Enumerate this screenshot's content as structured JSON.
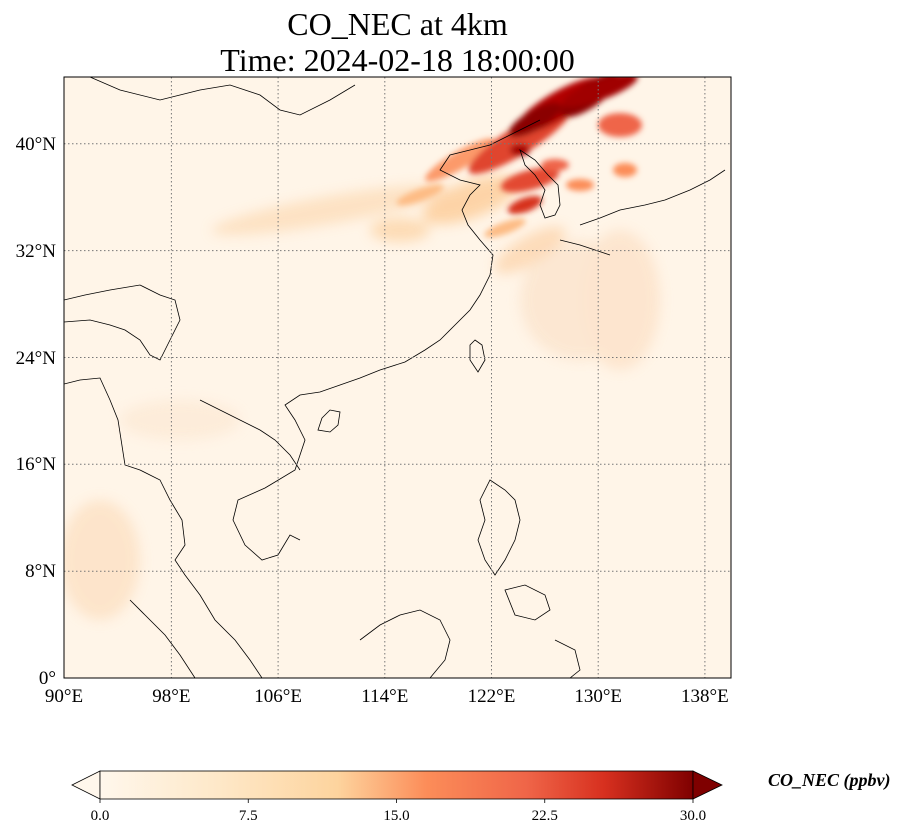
{
  "figure": {
    "title_line1": "CO_NEC at 4km",
    "title_line2": "Time: 2024-02-18 18:00:00",
    "colorbar_label": "CO_NEC (ppbv)"
  },
  "map": {
    "projection": "PlateCarree",
    "lon_range": [
      90,
      140
    ],
    "lat_range": [
      0,
      45
    ],
    "gridlines": "dotted",
    "xticks": [
      "90°E",
      "98°E",
      "106°E",
      "114°E",
      "122°E",
      "130°E",
      "138°E"
    ],
    "yticks": [
      "0°",
      "8°N",
      "16°N",
      "24°N",
      "32°N",
      "40°N"
    ],
    "colormap": "OrRd",
    "colors": {
      "background": "#fff5e8",
      "low": "#fee8c8",
      "mid": "#fdbb84",
      "high": "#d7301f",
      "max": "#7f0000",
      "coast": "#000000"
    }
  },
  "colorbar": {
    "ticks": [
      "0.0",
      "7.5",
      "15.0",
      "22.5",
      "30.0"
    ],
    "min": 0,
    "max": 30,
    "extend": "both"
  }
}
